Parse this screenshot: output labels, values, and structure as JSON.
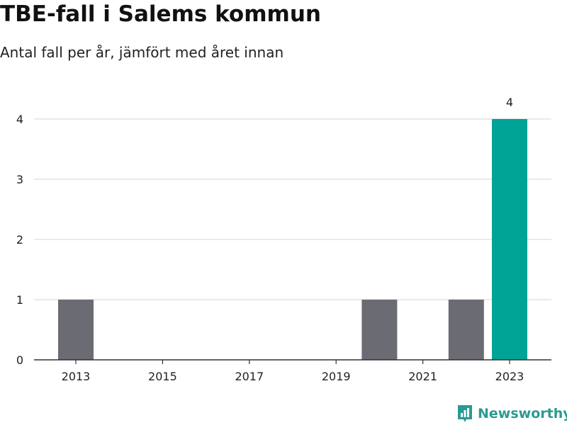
{
  "title": "TBE-fall i Salems kommun",
  "subtitle": "Antal fall per år, jämfört med året innan",
  "brand": "Newsworthy",
  "colors": {
    "bar": "#6b6b73",
    "highlight": "#00a497",
    "grid": "#dddddd",
    "axis": "#333333",
    "brand": "#2a9a91"
  },
  "chart_data": {
    "type": "bar",
    "x": [
      2013,
      2014,
      2015,
      2016,
      2017,
      2018,
      2019,
      2020,
      2021,
      2022,
      2023
    ],
    "values": [
      1,
      0,
      0,
      0,
      0,
      0,
      0,
      1,
      0,
      1,
      4
    ],
    "highlight": 2023,
    "data_labels": {
      "2023": "4"
    },
    "xticks": [
      "2013",
      "2015",
      "2017",
      "2019",
      "2021",
      "2023"
    ],
    "yticks": [
      0,
      1,
      2,
      3,
      4
    ],
    "ylim": [
      0,
      4
    ],
    "grid": true
  }
}
